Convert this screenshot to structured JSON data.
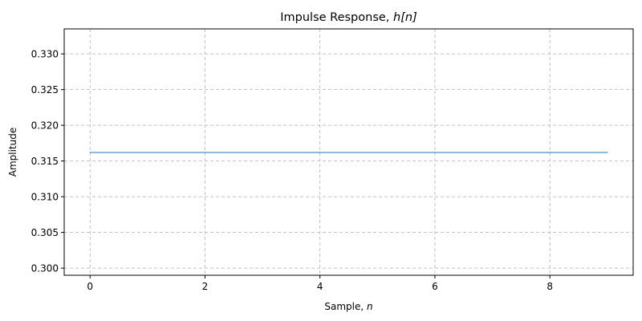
{
  "chart_data": {
    "type": "line",
    "title": "Impulse Response, h[n]",
    "title_parts": {
      "text": "Impulse Response, ",
      "math": "h[n]"
    },
    "xlabel": "Sample, n",
    "xlabel_parts": {
      "text": "Sample, ",
      "math": "n"
    },
    "ylabel": "Amplitude",
    "xlim": [
      -0.45,
      9.45
    ],
    "ylim": [
      0.299,
      0.3335
    ],
    "x_ticks": [
      0,
      2,
      4,
      6,
      8
    ],
    "x_tick_labels": [
      "0",
      "2",
      "4",
      "6",
      "8"
    ],
    "y_ticks": [
      0.3,
      0.305,
      0.31,
      0.315,
      0.32,
      0.325,
      0.33
    ],
    "y_tick_labels": [
      "0.300",
      "0.305",
      "0.310",
      "0.315",
      "0.320",
      "0.325",
      "0.330"
    ],
    "grid": true,
    "grid_style": "dashed",
    "series": [
      {
        "color": "#1f77b4",
        "x": [
          0,
          1,
          2,
          3,
          4,
          5,
          6,
          7,
          8,
          9
        ],
        "y": [
          0.3162,
          0.3162,
          0.3162,
          0.3162,
          0.3162,
          0.3162,
          0.3162,
          0.3162,
          0.3162,
          0.3162
        ]
      }
    ]
  }
}
